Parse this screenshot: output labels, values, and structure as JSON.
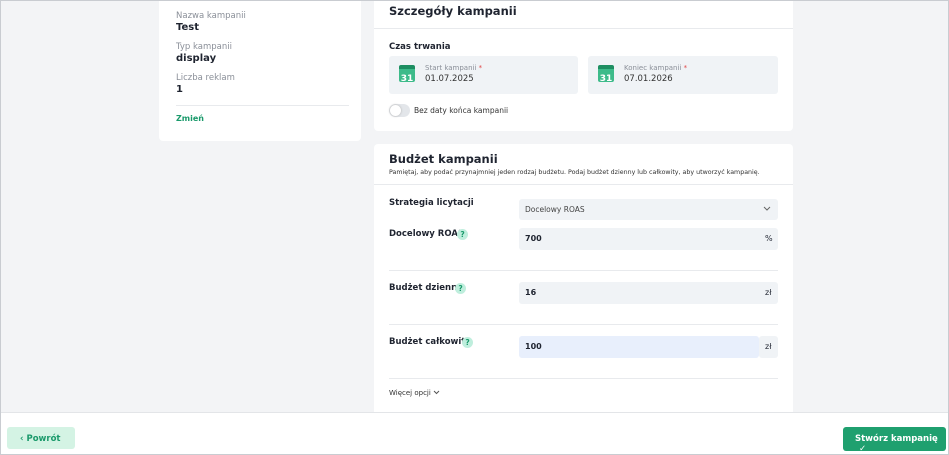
{
  "summary": {
    "name_label": "Nazwa kampanii",
    "name": "Test",
    "type_label": "Typ kampanii",
    "type": "display",
    "ads_label": "Liczba reklam",
    "ads": "1",
    "change": "Zmień"
  },
  "details": {
    "title": "Szczegóły kampanii",
    "duration_label": "Czas trwania",
    "start": {
      "icon": "31",
      "label": "Start kampanii",
      "required": "*",
      "value": "01.07.2025"
    },
    "end": {
      "icon": "31",
      "label": "Koniec kampanii",
      "required": "*",
      "value": "07.01.2026"
    },
    "no_end_toggle": "Bez daty końca kampanii"
  },
  "budget": {
    "title": "Budżet kampanii",
    "description": "Pamiętaj, aby podać przynajmniej jeden rodzaj budżetu. Podaj budżet dzienny lub całkowity, aby utworzyć kampanię.",
    "strategy_label": "Strategia licytacji",
    "strategy_value": "Docelowy ROAS",
    "roas": {
      "label": "Docelowy ROAS",
      "help": "?",
      "value": "700",
      "unit": "%"
    },
    "daily": {
      "label": "Budżet dzienny",
      "help": "?",
      "value": "16",
      "unit": "zł"
    },
    "total": {
      "label": "Budżet całkowity",
      "help": "?",
      "value": "100",
      "unit": "zł"
    },
    "more": "Więcej opcji"
  },
  "footer": {
    "back": "Powrót",
    "create": "Stwórz kampanię"
  }
}
